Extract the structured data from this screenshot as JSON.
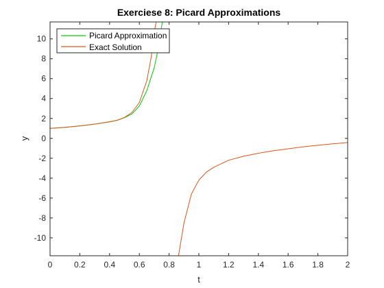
{
  "chart_data": {
    "type": "line",
    "title": "Exerciese 8: Picard Approximations",
    "xlabel": "t",
    "ylabel": "y",
    "xlim": [
      0,
      2
    ],
    "ylim": [
      -11.8,
      11.7
    ],
    "xticks": [
      0,
      0.2,
      0.4,
      0.6,
      0.8,
      1,
      1.2,
      1.4,
      1.6,
      1.8,
      2
    ],
    "xtick_labels": [
      "0",
      "0.2",
      "0.4",
      "0.6",
      "0.8",
      "1",
      "1.2",
      "1.4",
      "1.6",
      "1.8",
      "2"
    ],
    "yticks": [
      -10,
      -8,
      -6,
      -4,
      -2,
      0,
      2,
      4,
      6,
      8,
      10
    ],
    "ytick_labels": [
      "-10",
      "-8",
      "-6",
      "-4",
      "-2",
      "0",
      "2",
      "4",
      "6",
      "8",
      "10"
    ],
    "grid": false,
    "legend_position": "top-left",
    "series": [
      {
        "name": "Picard Approximation",
        "color": "#00cc00",
        "x": [
          0,
          0.1,
          0.2,
          0.3,
          0.4,
          0.45,
          0.5,
          0.55,
          0.6,
          0.65,
          0.7,
          0.72,
          0.74,
          0.76
        ],
        "y": [
          1,
          1.11,
          1.25,
          1.43,
          1.66,
          1.81,
          2.07,
          2.45,
          3.25,
          4.8,
          7.1,
          8.5,
          10.4,
          12.2
        ]
      },
      {
        "name": "Exact Solution",
        "color": "#d95319",
        "x": [
          0,
          0.1,
          0.2,
          0.3,
          0.4,
          0.45,
          0.5,
          0.55,
          0.6,
          0.65,
          0.68,
          0.7,
          0.72,
          0.86,
          0.9,
          0.95,
          1,
          1.05,
          1.1,
          1.2,
          1.3,
          1.4,
          1.5,
          1.6,
          1.7,
          1.8,
          1.9,
          2
        ],
        "y": [
          1,
          1.11,
          1.25,
          1.43,
          1.67,
          1.82,
          2.1,
          2.6,
          3.6,
          5.8,
          8.2,
          10.7,
          12.2,
          -12.1,
          -8.5,
          -5.6,
          -4.2,
          -3.4,
          -2.9,
          -2.2,
          -1.8,
          -1.5,
          -1.25,
          -1.05,
          -0.85,
          -0.7,
          -0.55,
          -0.42
        ]
      }
    ]
  }
}
